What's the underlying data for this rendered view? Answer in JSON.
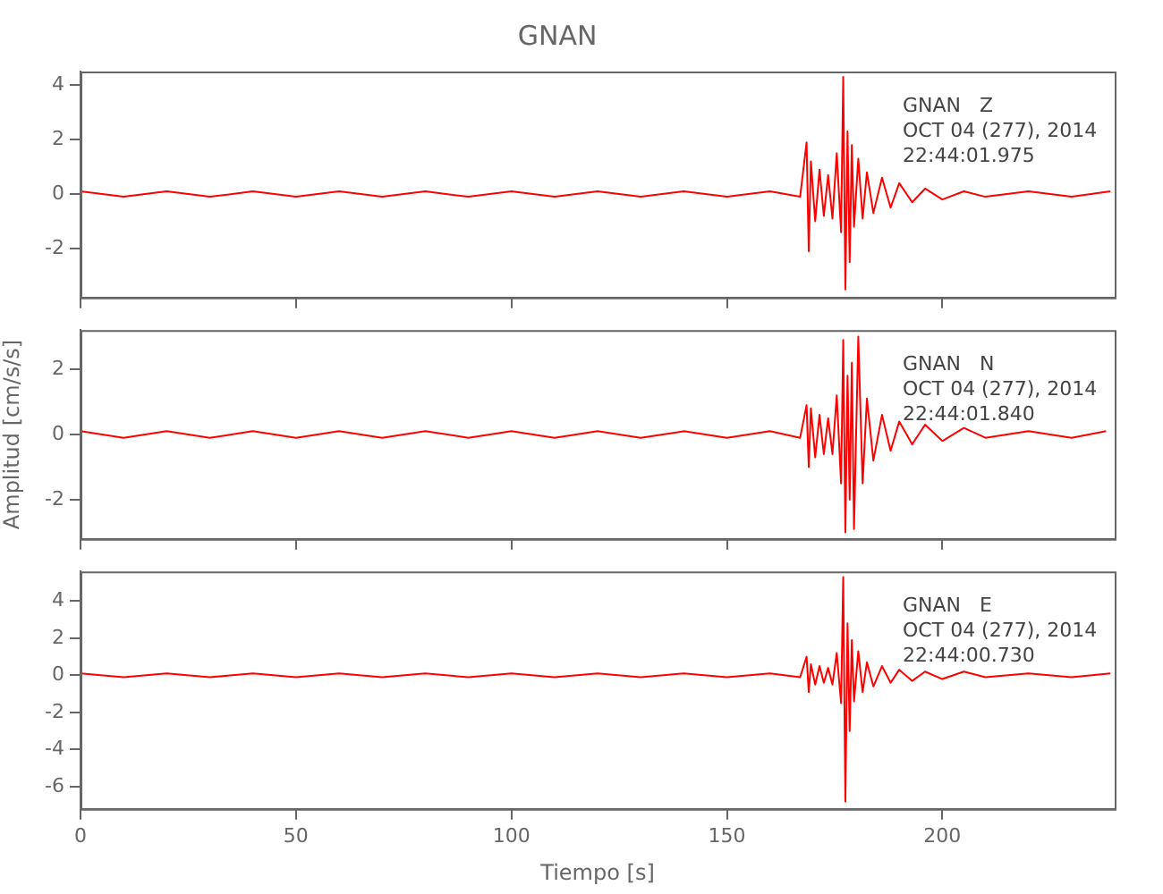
{
  "chart_data": [
    {
      "type": "line",
      "title": "GNAN",
      "x": [
        0,
        10,
        20,
        30,
        40,
        50,
        60,
        70,
        80,
        90,
        100,
        110,
        120,
        130,
        140,
        150,
        160,
        167,
        168.5,
        169,
        169.5,
        170.5,
        171.5,
        172.5,
        173.5,
        174.5,
        175.5,
        176.5,
        177,
        177.5,
        178,
        178.5,
        179,
        179.5,
        180.5,
        181.5,
        182.5,
        184,
        186,
        188,
        190,
        193,
        196,
        200,
        205,
        210,
        220,
        230,
        239
      ],
      "series": [
        {
          "color": "#ff0000",
          "values": [
            0.1,
            -0.1,
            0.1,
            -0.1,
            0.1,
            -0.1,
            0.1,
            -0.1,
            0.1,
            -0.1,
            0.1,
            -0.1,
            0.1,
            -0.1,
            0.1,
            -0.1,
            0.1,
            -0.1,
            1.9,
            -2.1,
            1.2,
            -1.0,
            0.9,
            -0.8,
            0.7,
            -0.9,
            1.5,
            -1.4,
            4.3,
            -3.5,
            2.3,
            -2.5,
            1.8,
            -1.2,
            1.3,
            -0.9,
            0.8,
            -0.7,
            0.6,
            -0.5,
            0.4,
            -0.3,
            0.2,
            -0.2,
            0.1,
            -0.1,
            0.1,
            -0.1,
            0.1
          ]
        }
      ],
      "xlim": [
        0,
        240
      ],
      "xticks": [
        0,
        50,
        100,
        150,
        200
      ],
      "ylim": [
        -3.8,
        4.5
      ],
      "yticks": [
        -2,
        0,
        2,
        4
      ],
      "tick_labels": "y",
      "grid": false,
      "legend": false,
      "marker": "none",
      "line_style": "solid",
      "annotations": [
        "GNAN   Z",
        "OCT 04 (277), 2014",
        "22:44:01.975"
      ]
    },
    {
      "type": "line",
      "ylabel": "Amplitud [cm/s/s]",
      "x": [
        0,
        10,
        20,
        30,
        40,
        50,
        60,
        70,
        80,
        90,
        100,
        110,
        120,
        130,
        140,
        150,
        160,
        167,
        168.5,
        169,
        169.5,
        170.5,
        171.5,
        172.5,
        173.5,
        174.5,
        175.5,
        176.5,
        177,
        177.5,
        178,
        178.5,
        179,
        179.5,
        180.5,
        181.5,
        182.5,
        184,
        186,
        188,
        190,
        193,
        196,
        200,
        205,
        210,
        220,
        230,
        238
      ],
      "series": [
        {
          "color": "#ff0000",
          "values": [
            0.1,
            -0.1,
            0.1,
            -0.1,
            0.1,
            -0.1,
            0.1,
            -0.1,
            0.1,
            -0.1,
            0.1,
            -0.1,
            0.1,
            -0.1,
            0.1,
            -0.1,
            0.1,
            -0.1,
            0.9,
            -1.0,
            0.8,
            -0.7,
            0.6,
            -0.6,
            0.5,
            -0.6,
            1.2,
            -1.5,
            2.9,
            -3.0,
            1.8,
            -2.0,
            2.2,
            -2.9,
            3.0,
            -1.5,
            1.1,
            -0.8,
            0.6,
            -0.5,
            0.4,
            -0.3,
            0.3,
            -0.2,
            0.2,
            -0.1,
            0.1,
            -0.1,
            0.1
          ]
        }
      ],
      "xlim": [
        0,
        240
      ],
      "xticks": [
        0,
        50,
        100,
        150,
        200
      ],
      "ylim": [
        -3.2,
        3.2
      ],
      "yticks": [
        -2,
        0,
        2
      ],
      "tick_labels": "y",
      "grid": false,
      "legend": false,
      "marker": "none",
      "line_style": "solid",
      "annotations": [
        "GNAN   N",
        "OCT 04 (277), 2014",
        "22:44:01.840"
      ]
    },
    {
      "type": "line",
      "xlabel": "Tiempo [s]",
      "x": [
        0,
        10,
        20,
        30,
        40,
        50,
        60,
        70,
        80,
        90,
        100,
        110,
        120,
        130,
        140,
        150,
        160,
        167,
        168.5,
        169,
        169.5,
        170.5,
        171.5,
        172.5,
        173.5,
        174.5,
        175.5,
        176.5,
        177,
        177.5,
        178,
        178.5,
        179,
        179.5,
        180.5,
        181.5,
        182.5,
        184,
        186,
        188,
        190,
        193,
        196,
        200,
        205,
        210,
        220,
        230,
        239
      ],
      "series": [
        {
          "color": "#ff0000",
          "values": [
            0.1,
            -0.1,
            0.1,
            -0.1,
            0.1,
            -0.1,
            0.1,
            -0.1,
            0.1,
            -0.1,
            0.1,
            -0.1,
            0.1,
            -0.1,
            0.1,
            -0.1,
            0.1,
            -0.1,
            1.0,
            -0.9,
            0.6,
            -0.5,
            0.5,
            -0.4,
            0.4,
            -0.5,
            1.2,
            -1.5,
            5.3,
            -6.8,
            2.8,
            -3.0,
            1.9,
            -1.4,
            1.3,
            -0.9,
            0.7,
            -0.6,
            0.5,
            -0.4,
            0.3,
            -0.3,
            0.2,
            -0.2,
            0.2,
            -0.1,
            0.1,
            -0.1,
            0.1
          ]
        }
      ],
      "xlim": [
        0,
        240
      ],
      "xticks": [
        0,
        50,
        100,
        150,
        200
      ],
      "ylim": [
        -7.2,
        5.6
      ],
      "yticks": [
        -6,
        -4,
        -2,
        0,
        2,
        4
      ],
      "grid": false,
      "legend": false,
      "marker": "none",
      "line_style": "solid",
      "annotations": [
        "GNAN   E",
        "OCT 04 (277), 2014",
        "22:44:00.730"
      ]
    }
  ]
}
